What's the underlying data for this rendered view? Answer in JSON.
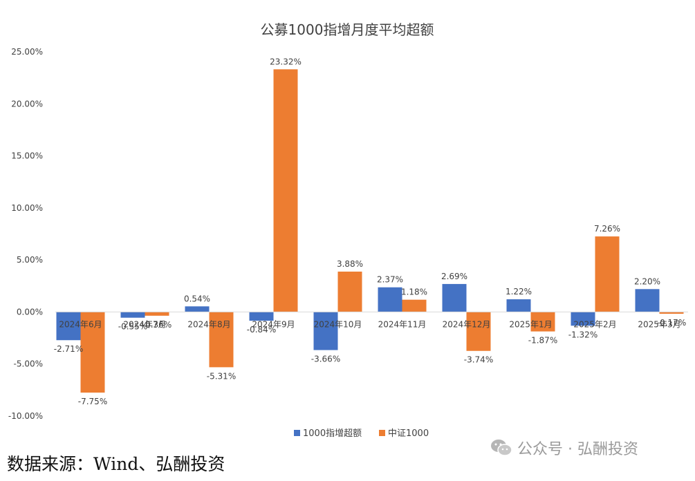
{
  "chart_data": {
    "type": "bar",
    "title": "公募1000指增月度平均超额",
    "categories": [
      "2024年6月",
      "2024年7月",
      "2024年8月",
      "2024年9月",
      "2024年10月",
      "2024年11月",
      "2024年12月",
      "2025年1月",
      "2025年2月",
      "2025年3月"
    ],
    "series": [
      {
        "name": "1000指增超额",
        "color": "#4472C4",
        "values": [
          -2.71,
          -0.55,
          0.54,
          -0.84,
          -3.66,
          2.37,
          2.69,
          1.22,
          -1.32,
          2.2
        ],
        "labels": [
          "-2.71%",
          "-0.55%",
          "0.54%",
          "-0.84%",
          "-3.66%",
          "2.37%",
          "2.69%",
          "1.22%",
          "-1.32%",
          "2.20%"
        ]
      },
      {
        "name": "中证1000",
        "color": "#ED7D31",
        "values": [
          -7.75,
          -0.36,
          -5.31,
          23.32,
          3.88,
          1.18,
          -3.74,
          -1.87,
          7.26,
          -0.17
        ],
        "labels": [
          "-7.75%",
          "-0.36%",
          "-5.31%",
          "23.32%",
          "3.88%",
          "1.18%",
          "-3.74%",
          "-1.87%",
          "7.26%",
          "-0.17%"
        ]
      }
    ],
    "ylim": [
      -10,
      25
    ],
    "yticks": [
      "-10.00%",
      "-5.00%",
      "0.00%",
      "5.00%",
      "10.00%",
      "15.00%",
      "20.00%",
      "25.00%"
    ],
    "ytick_values": [
      -10,
      -5,
      0,
      5,
      10,
      15,
      20,
      25
    ],
    "grid": false,
    "legend_position": "bottom"
  },
  "footer": {
    "source": "数据来源：Wind、弘酬投资",
    "watermark": "公众号 · 弘酬投资"
  },
  "icons": {
    "watermark_icon": "wechat-icon"
  }
}
